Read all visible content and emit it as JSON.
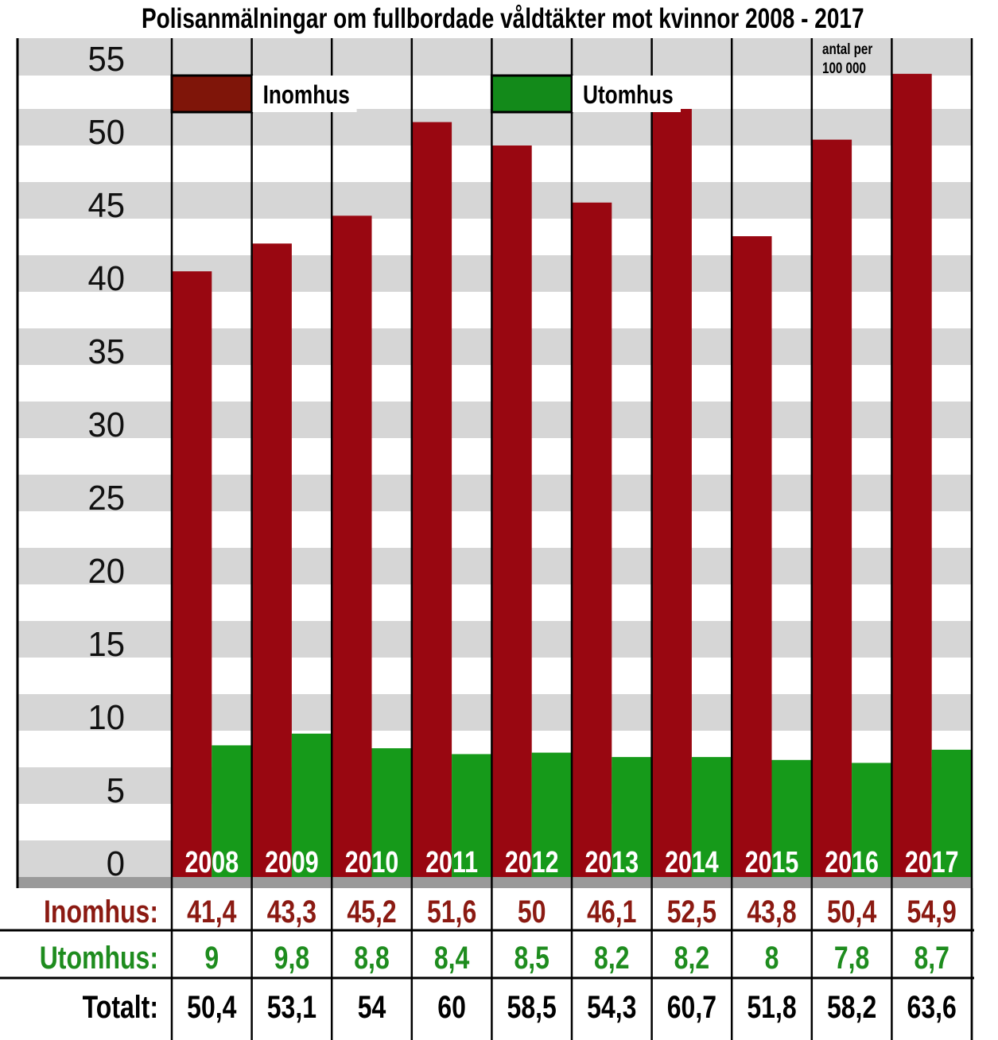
{
  "chart_data": {
    "type": "bar",
    "title": "Polisanmälningar om fullbordade våldtäkter mot kvinnor 2008 - 2017",
    "unit_note": [
      "antal per",
      "100 000"
    ],
    "xlabel": "",
    "ylabel": "",
    "ylim": [
      0,
      55
    ],
    "yticks": [
      0,
      5,
      10,
      15,
      20,
      25,
      30,
      35,
      40,
      45,
      50,
      55
    ],
    "grid": "alternating horizontal bands",
    "legend_placement": "top",
    "categories": [
      "2008",
      "2009",
      "2010",
      "2011",
      "2012",
      "2013",
      "2014",
      "2015",
      "2016",
      "2017"
    ],
    "series": [
      {
        "name": "Inomhus",
        "color": "#990711",
        "legend_color": "#7f1509",
        "label_color": "#8b1a12",
        "values": [
          41.4,
          43.3,
          45.2,
          51.6,
          50,
          46.1,
          52.5,
          43.8,
          50.4,
          54.9
        ],
        "labels": [
          "41,4",
          "43,3",
          "45,2",
          "51,6",
          "50",
          "46,1",
          "52,5",
          "43,8",
          "50,4",
          "54,9"
        ]
      },
      {
        "name": "Utomhus",
        "color": "#169a1a",
        "legend_color": "#138a1a",
        "label_color": "#1e8c1e",
        "values": [
          9,
          9.8,
          8.8,
          8.4,
          8.5,
          8.2,
          8.2,
          8,
          7.8,
          8.7
        ],
        "labels": [
          "9",
          "9,8",
          "8,8",
          "8,4",
          "8,5",
          "8,2",
          "8,2",
          "8",
          "7,8",
          "8,7"
        ]
      }
    ],
    "table": {
      "row_labels": [
        "Inomhus:",
        "Utomhus:",
        "Totalt:"
      ],
      "totals": [
        50.4,
        53.1,
        54,
        60,
        58.5,
        54.3,
        60.7,
        51.8,
        58.2,
        63.6
      ],
      "total_labels": [
        "50,4",
        "53,1",
        "54",
        "60",
        "58,5",
        "54,3",
        "60,7",
        "51,8",
        "58,2",
        "63,6"
      ]
    }
  }
}
